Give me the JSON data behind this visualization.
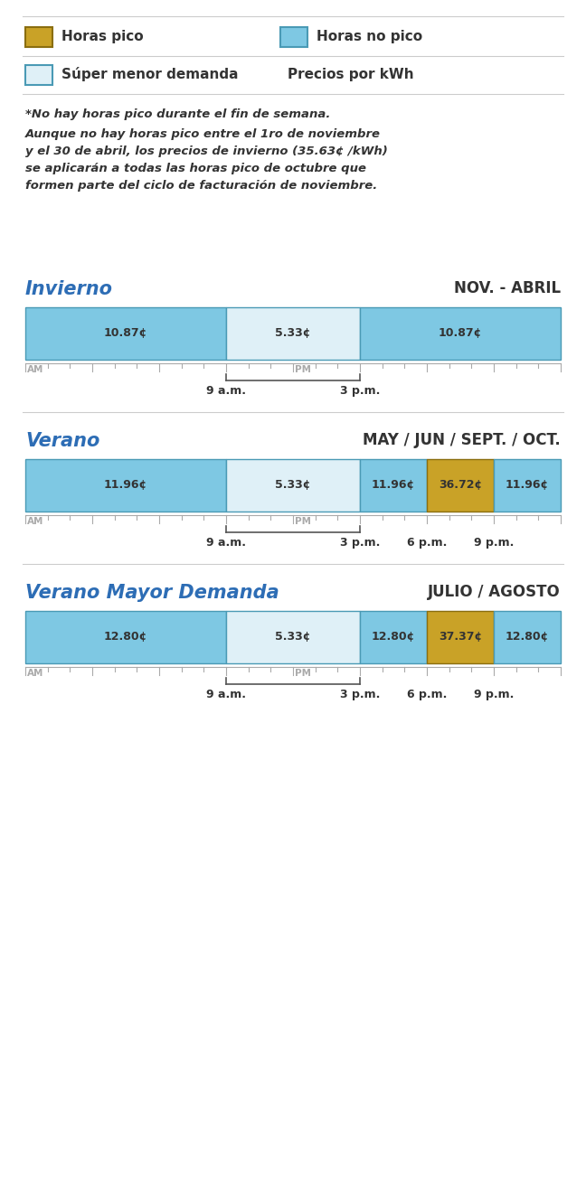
{
  "bg_color": "#ffffff",
  "legend": {
    "items": [
      {
        "label": "Horas pico",
        "color": "#c9a227",
        "outline": "#8a6e10"
      },
      {
        "label": "Horas no pico",
        "color": "#7ec8e3",
        "outline": "#4a9ab5"
      },
      {
        "label": "Súper menor demanda",
        "color": "#dff0f7",
        "outline": "#4a9ab5"
      },
      {
        "label": "Precios por kWh",
        "color": null
      }
    ]
  },
  "notes": [
    "*No hay horas pico durante el fin de semana.",
    "Aunque no hay horas pico entre el 1ro de noviembre\ny el 30 de abril, los precios de invierno (35.63¢ /kWh)\nse aplicarán a todas las horas pico de octubre que\nformen parte del ciclo de facturación de noviembre."
  ],
  "seasons": [
    {
      "title": "Invierno",
      "subtitle": "NOV. - ABRIL",
      "title_color": "#2d6db5",
      "segments": [
        {
          "start": 0,
          "end": 9,
          "color": "#7ec8e3",
          "outline": "#4a9ab5",
          "label": "10.87¢"
        },
        {
          "start": 9,
          "end": 15,
          "color": "#dff0f7",
          "outline": "#4a9ab5",
          "label": "5.33¢"
        },
        {
          "start": 15,
          "end": 24,
          "color": "#7ec8e3",
          "outline": "#4a9ab5",
          "label": "10.87¢"
        }
      ],
      "tick_labels": [
        {
          "hour": 9,
          "label": "9 a.m."
        },
        {
          "hour": 15,
          "label": "3 p.m."
        }
      ],
      "bracket": {
        "start": 9,
        "end": 15
      }
    },
    {
      "title": "Verano",
      "subtitle": "MAY / JUN / SEPT. / OCT.",
      "title_color": "#2d6db5",
      "segments": [
        {
          "start": 0,
          "end": 9,
          "color": "#7ec8e3",
          "outline": "#4a9ab5",
          "label": "11.96¢"
        },
        {
          "start": 9,
          "end": 15,
          "color": "#dff0f7",
          "outline": "#4a9ab5",
          "label": "5.33¢"
        },
        {
          "start": 15,
          "end": 18,
          "color": "#7ec8e3",
          "outline": "#4a9ab5",
          "label": "11.96¢"
        },
        {
          "start": 18,
          "end": 21,
          "color": "#c9a227",
          "outline": "#8a6e10",
          "label": "36.72¢"
        },
        {
          "start": 21,
          "end": 24,
          "color": "#7ec8e3",
          "outline": "#4a9ab5",
          "label": "11.96¢"
        }
      ],
      "tick_labels": [
        {
          "hour": 9,
          "label": "9 a.m."
        },
        {
          "hour": 15,
          "label": "3 p.m."
        },
        {
          "hour": 18,
          "label": "6 p.m."
        },
        {
          "hour": 21,
          "label": "9 p.m."
        }
      ],
      "bracket": {
        "start": 9,
        "end": 15
      }
    },
    {
      "title": "Verano Mayor Demanda",
      "subtitle": "JULIO / AGOSTO",
      "title_color": "#2d6db5",
      "segments": [
        {
          "start": 0,
          "end": 9,
          "color": "#7ec8e3",
          "outline": "#4a9ab5",
          "label": "12.80¢"
        },
        {
          "start": 9,
          "end": 15,
          "color": "#dff0f7",
          "outline": "#4a9ab5",
          "label": "5.33¢"
        },
        {
          "start": 15,
          "end": 18,
          "color": "#7ec8e3",
          "outline": "#4a9ab5",
          "label": "12.80¢"
        },
        {
          "start": 18,
          "end": 21,
          "color": "#c9a227",
          "outline": "#8a6e10",
          "label": "37.37¢"
        },
        {
          "start": 21,
          "end": 24,
          "color": "#7ec8e3",
          "outline": "#4a9ab5",
          "label": "12.80¢"
        }
      ],
      "tick_labels": [
        {
          "hour": 9,
          "label": "9 a.m."
        },
        {
          "hour": 15,
          "label": "3 p.m."
        },
        {
          "hour": 18,
          "label": "6 p.m."
        },
        {
          "hour": 21,
          "label": "9 p.m."
        }
      ],
      "bracket": {
        "start": 9,
        "end": 15
      }
    }
  ],
  "divider_color": "#cccccc",
  "tick_color": "#aaaaaa",
  "am_pm_color": "#aaaaaa",
  "label_color": "#333333"
}
